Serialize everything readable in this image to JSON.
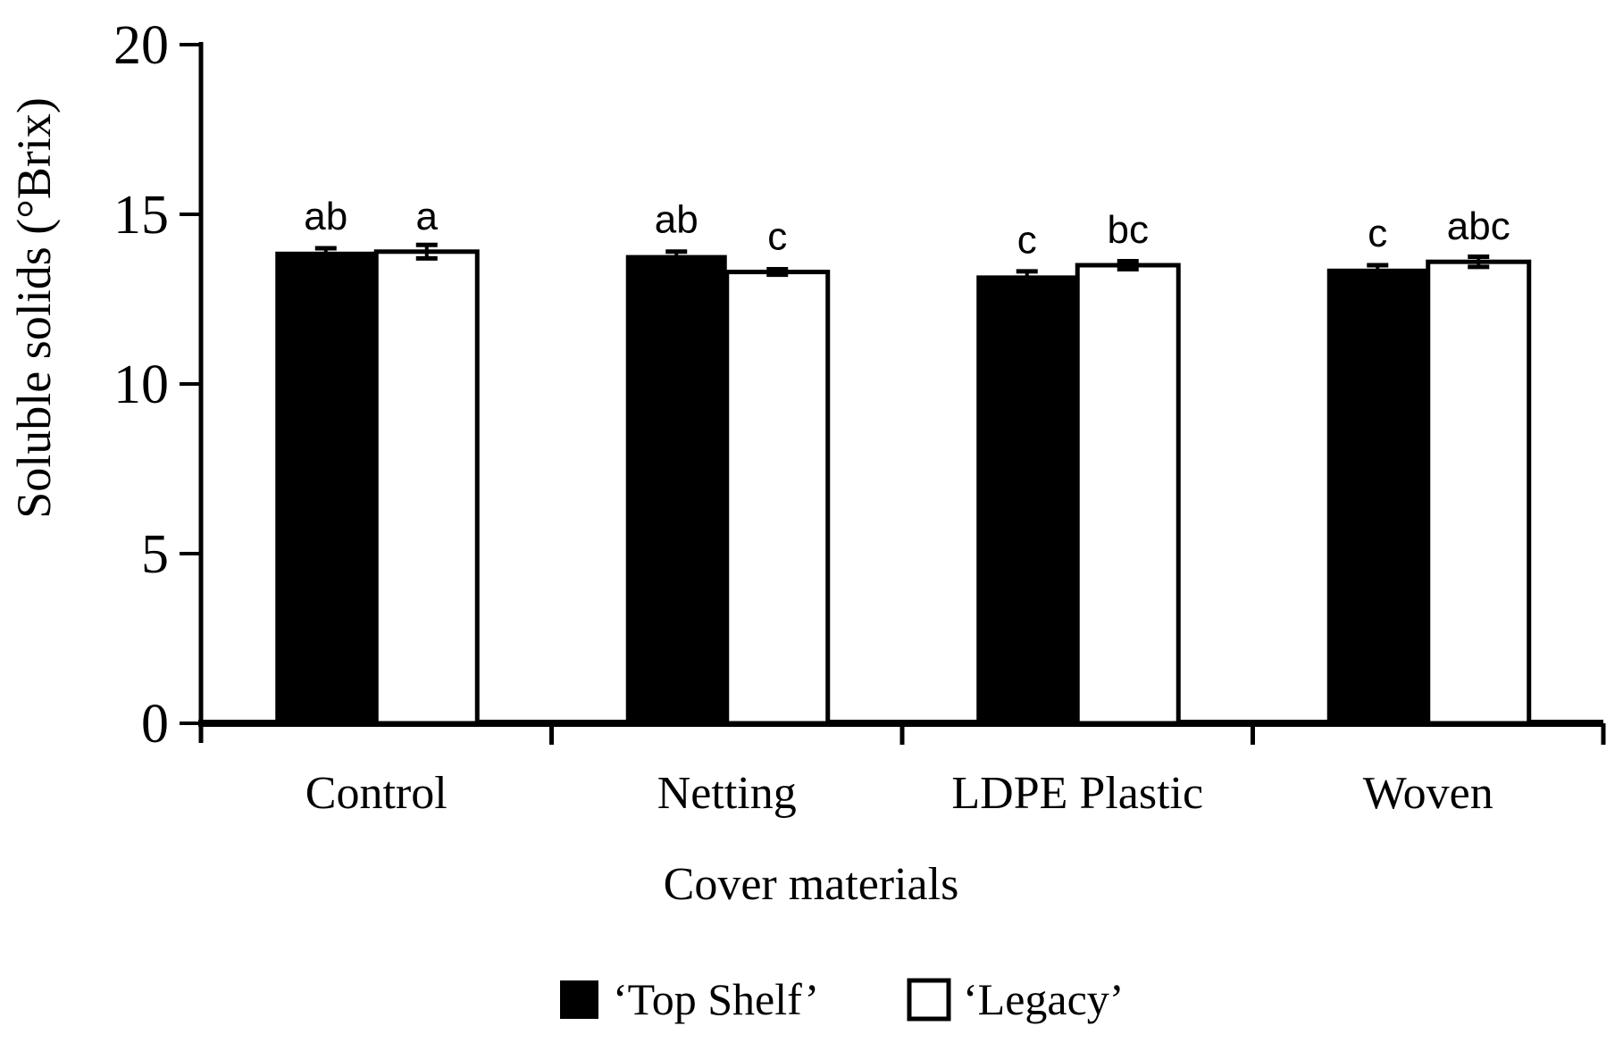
{
  "figure": {
    "background": "#ffffff",
    "ink_color": "#000000"
  },
  "chart_data": {
    "type": "bar",
    "title": "",
    "xlabel": "Cover materials",
    "ylabel": "Soluble solids (°Brix)",
    "ylim": [
      0,
      20
    ],
    "yticks": [
      "0",
      "5",
      "10",
      "15",
      "20"
    ],
    "grid": false,
    "legend_position": "bottom",
    "categories": [
      "Control",
      "Netting",
      "LDPE Plastic",
      "Woven"
    ],
    "series": [
      {
        "name": "‘Top Shelf’",
        "fill": "#000000",
        "values": [
          13.9,
          13.8,
          13.2,
          13.4
        ],
        "errors": [
          0.1,
          0.1,
          0.12,
          0.1
        ],
        "letters": [
          "ab",
          "ab",
          "c",
          "c"
        ]
      },
      {
        "name": "‘Legacy’",
        "fill": "#ffffff",
        "values": [
          13.9,
          13.3,
          13.5,
          13.6
        ],
        "errors": [
          0.2,
          0.08,
          0.12,
          0.15
        ],
        "letters": [
          "a",
          "c",
          "bc",
          "abc"
        ]
      }
    ]
  }
}
